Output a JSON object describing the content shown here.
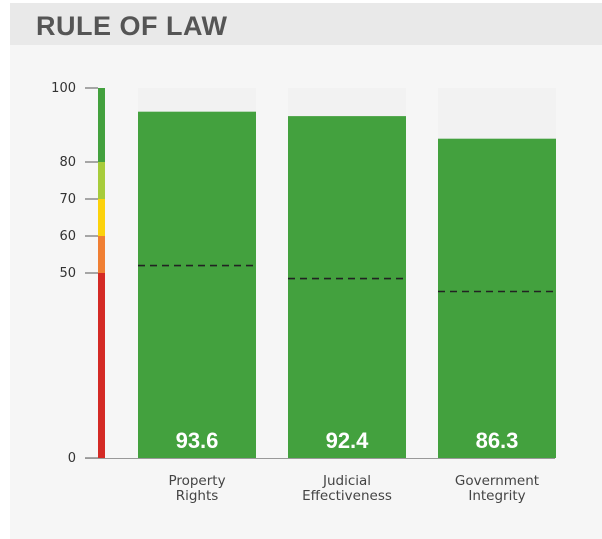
{
  "header": {
    "title": "RULE OF LAW"
  },
  "chart_data": {
    "type": "bar",
    "categories": [
      {
        "line1": "Property",
        "line2": "Rights"
      },
      {
        "line1": "Judicial",
        "line2": "Effectiveness"
      },
      {
        "line1": "Government",
        "line2": "Integrity"
      }
    ],
    "values": [
      93.6,
      92.4,
      86.3
    ],
    "value_labels": [
      "93.6",
      "92.4",
      "86.3"
    ],
    "averages": [
      52,
      48.5,
      45
    ],
    "ylim": [
      0,
      100
    ],
    "yticks": [
      0,
      50,
      60,
      70,
      80,
      100
    ],
    "bar_color": "#43a13e",
    "track_color": "#f2f2f2",
    "average_line_color": "#222222",
    "scale_bands": [
      {
        "from": 0,
        "to": 50,
        "color": "#d42a25"
      },
      {
        "from": 50,
        "to": 60,
        "color": "#f07f33"
      },
      {
        "from": 60,
        "to": 70,
        "color": "#fcd20c"
      },
      {
        "from": 70,
        "to": 80,
        "color": "#a7cc3b"
      },
      {
        "from": 80,
        "to": 100,
        "color": "#43a13e"
      }
    ]
  }
}
